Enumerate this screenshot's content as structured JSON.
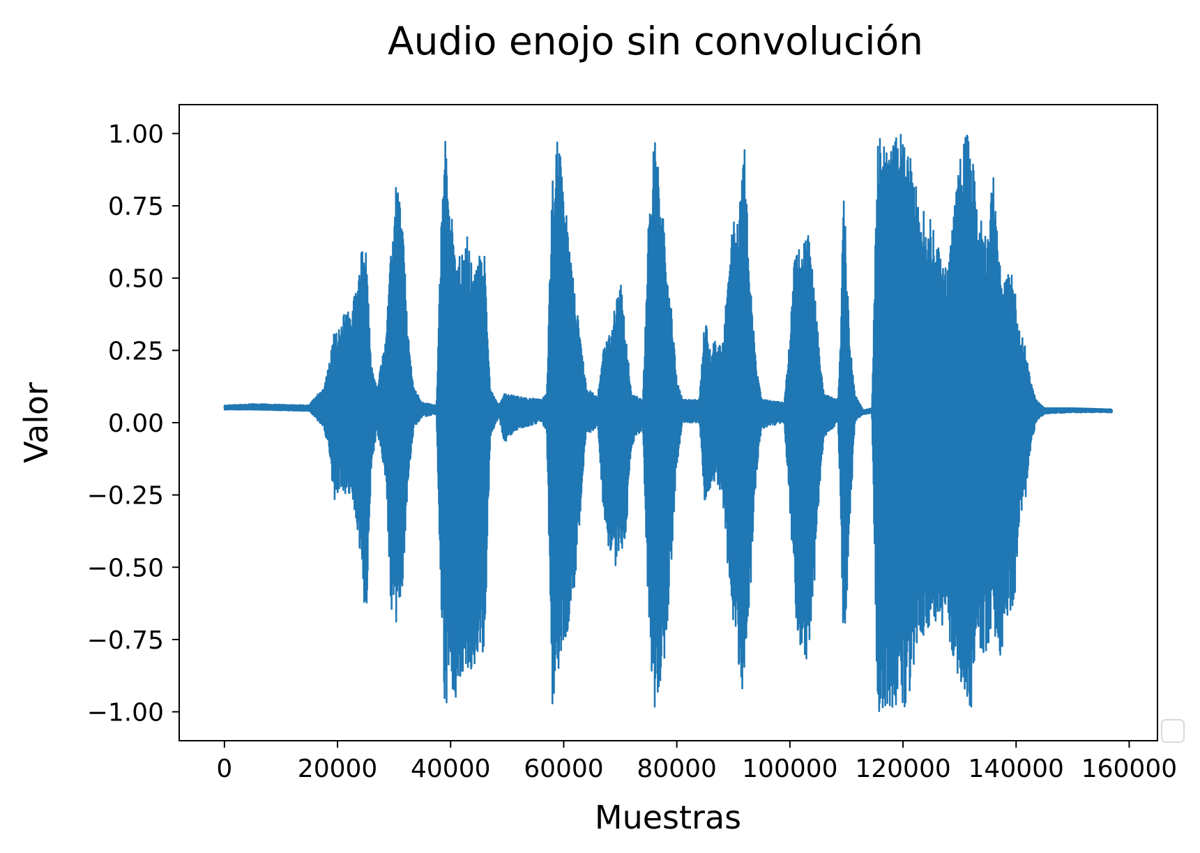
{
  "chart_data": {
    "type": "line",
    "title": "Audio enojo sin convolución",
    "xlabel": "Muestras",
    "ylabel": "Valor",
    "xlim": [
      -8000,
      165000
    ],
    "ylim": [
      -1.1,
      1.1
    ],
    "x_ticks": [
      0,
      20000,
      40000,
      60000,
      80000,
      100000,
      120000,
      140000,
      160000
    ],
    "x_tick_labels": [
      "0",
      "20000",
      "40000",
      "60000",
      "80000",
      "100000",
      "120000",
      "140000",
      "160000"
    ],
    "y_ticks": [
      1.0,
      0.75,
      0.5,
      0.25,
      0.0,
      -0.25,
      -0.5,
      -0.75,
      -1.0
    ],
    "y_tick_labels": [
      "1.00",
      "0.75",
      "0.50",
      "0.25",
      "0.00",
      "−0.25",
      "−0.50",
      "−0.75",
      "−1.00"
    ],
    "grid": false,
    "legend": "empty legend box, lower-right",
    "series": [
      {
        "color": "#1f77b4",
        "x_range": [
          0,
          157000
        ],
        "baseline": 0.05,
        "envelope": [
          {
            "x": 0,
            "max": 0.06,
            "min": 0.045
          },
          {
            "x": 5000,
            "max": 0.065,
            "min": 0.045
          },
          {
            "x": 15000,
            "max": 0.06,
            "min": 0.04
          },
          {
            "x": 16000,
            "max": 0.09,
            "min": 0.02
          },
          {
            "x": 17500,
            "max": 0.12,
            "min": -0.02
          },
          {
            "x": 18500,
            "max": 0.2,
            "min": -0.1
          },
          {
            "x": 19500,
            "max": 0.33,
            "min": -0.29
          },
          {
            "x": 20500,
            "max": 0.32,
            "min": -0.22
          },
          {
            "x": 21500,
            "max": 0.41,
            "min": -0.25
          },
          {
            "x": 22500,
            "max": 0.38,
            "min": -0.26
          },
          {
            "x": 23500,
            "max": 0.52,
            "min": -0.37
          },
          {
            "x": 24500,
            "max": 0.62,
            "min": -0.58
          },
          {
            "x": 25000,
            "max": 0.6,
            "min": -0.74
          },
          {
            "x": 26000,
            "max": 0.2,
            "min": -0.15
          },
          {
            "x": 27000,
            "max": 0.12,
            "min": -0.03
          },
          {
            "x": 28500,
            "max": 0.3,
            "min": -0.2
          },
          {
            "x": 29500,
            "max": 0.6,
            "min": -0.65
          },
          {
            "x": 30500,
            "max": 0.87,
            "min": -0.72
          },
          {
            "x": 31500,
            "max": 0.7,
            "min": -0.6
          },
          {
            "x": 32500,
            "max": 0.3,
            "min": -0.2
          },
          {
            "x": 33500,
            "max": 0.12,
            "min": -0.02
          },
          {
            "x": 35000,
            "max": 0.07,
            "min": 0.02
          },
          {
            "x": 37500,
            "max": 0.06,
            "min": 0.03
          },
          {
            "x": 38500,
            "max": 0.8,
            "min": -0.8
          },
          {
            "x": 39000,
            "max": 1.0,
            "min": -1.0
          },
          {
            "x": 40000,
            "max": 0.75,
            "min": -0.9
          },
          {
            "x": 41000,
            "max": 0.6,
            "min": -1.0
          },
          {
            "x": 42000,
            "max": 0.58,
            "min": -0.88
          },
          {
            "x": 43000,
            "max": 0.65,
            "min": -0.95
          },
          {
            "x": 44000,
            "max": 0.5,
            "min": -0.85
          },
          {
            "x": 45000,
            "max": 0.59,
            "min": -0.9
          },
          {
            "x": 46000,
            "max": 0.58,
            "min": -0.8
          },
          {
            "x": 47000,
            "max": 0.12,
            "min": -0.05
          },
          {
            "x": 48500,
            "max": 0.06,
            "min": 0.02
          },
          {
            "x": 49500,
            "max": 0.1,
            "min": -0.07
          },
          {
            "x": 52000,
            "max": 0.09,
            "min": -0.02
          },
          {
            "x": 56000,
            "max": 0.08,
            "min": 0.0
          },
          {
            "x": 57000,
            "max": 0.1,
            "min": -0.03
          },
          {
            "x": 58000,
            "max": 0.86,
            "min": -0.98
          },
          {
            "x": 59000,
            "max": 1.0,
            "min": -0.9
          },
          {
            "x": 60000,
            "max": 0.85,
            "min": -0.8
          },
          {
            "x": 61000,
            "max": 0.6,
            "min": -0.7
          },
          {
            "x": 62000,
            "max": 0.45,
            "min": -0.55
          },
          {
            "x": 63000,
            "max": 0.3,
            "min": -0.3
          },
          {
            "x": 64000,
            "max": 0.12,
            "min": -0.04
          },
          {
            "x": 66000,
            "max": 0.09,
            "min": -0.02
          },
          {
            "x": 67000,
            "max": 0.26,
            "min": -0.3
          },
          {
            "x": 68000,
            "max": 0.3,
            "min": -0.45
          },
          {
            "x": 69000,
            "max": 0.4,
            "min": -0.5
          },
          {
            "x": 70000,
            "max": 0.52,
            "min": -0.46
          },
          {
            "x": 71000,
            "max": 0.3,
            "min": -0.4
          },
          {
            "x": 72000,
            "max": 0.1,
            "min": -0.08
          },
          {
            "x": 74000,
            "max": 0.08,
            "min": -0.02
          },
          {
            "x": 75000,
            "max": 0.7,
            "min": -0.7
          },
          {
            "x": 76000,
            "max": 1.0,
            "min": -1.0
          },
          {
            "x": 77000,
            "max": 0.85,
            "min": -0.9
          },
          {
            "x": 78000,
            "max": 0.6,
            "min": -0.8
          },
          {
            "x": 79000,
            "max": 0.4,
            "min": -0.5
          },
          {
            "x": 80000,
            "max": 0.15,
            "min": -0.15
          },
          {
            "x": 81000,
            "max": 0.08,
            "min": 0.0
          },
          {
            "x": 84000,
            "max": 0.08,
            "min": 0.0
          },
          {
            "x": 85000,
            "max": 0.38,
            "min": -0.3
          },
          {
            "x": 86000,
            "max": 0.25,
            "min": -0.22
          },
          {
            "x": 87000,
            "max": 0.3,
            "min": -0.2
          },
          {
            "x": 88000,
            "max": 0.25,
            "min": -0.25
          },
          {
            "x": 89000,
            "max": 0.5,
            "min": -0.5
          },
          {
            "x": 90000,
            "max": 0.72,
            "min": -0.7
          },
          {
            "x": 91000,
            "max": 0.75,
            "min": -0.85
          },
          {
            "x": 92000,
            "max": 0.99,
            "min": -1.0
          },
          {
            "x": 93000,
            "max": 0.5,
            "min": -0.6
          },
          {
            "x": 94000,
            "max": 0.2,
            "min": -0.2
          },
          {
            "x": 95000,
            "max": 0.08,
            "min": -0.02
          },
          {
            "x": 99000,
            "max": 0.07,
            "min": 0.0
          },
          {
            "x": 100000,
            "max": 0.3,
            "min": -0.3
          },
          {
            "x": 101000,
            "max": 0.64,
            "min": -0.7
          },
          {
            "x": 102000,
            "max": 0.6,
            "min": -0.8
          },
          {
            "x": 103000,
            "max": 0.69,
            "min": -0.82
          },
          {
            "x": 104000,
            "max": 0.55,
            "min": -0.7
          },
          {
            "x": 105000,
            "max": 0.3,
            "min": -0.3
          },
          {
            "x": 106000,
            "max": 0.1,
            "min": -0.05
          },
          {
            "x": 108500,
            "max": 0.08,
            "min": 0.0
          },
          {
            "x": 109000,
            "max": 0.3,
            "min": -0.3
          },
          {
            "x": 109500,
            "max": 0.87,
            "min": -0.86
          },
          {
            "x": 110500,
            "max": 0.3,
            "min": -0.4
          },
          {
            "x": 111500,
            "max": 0.1,
            "min": 0.0
          },
          {
            "x": 113000,
            "max": 0.04,
            "min": 0.03
          },
          {
            "x": 114500,
            "max": 0.05,
            "min": 0.03
          },
          {
            "x": 115500,
            "max": 1.0,
            "min": -1.0
          },
          {
            "x": 120000,
            "max": 1.0,
            "min": -1.0
          },
          {
            "x": 121000,
            "max": 0.95,
            "min": -0.95
          },
          {
            "x": 123000,
            "max": 0.75,
            "min": -0.75
          },
          {
            "x": 125000,
            "max": 0.7,
            "min": -0.7
          },
          {
            "x": 127000,
            "max": 0.55,
            "min": -0.7
          },
          {
            "x": 128000,
            "max": 0.55,
            "min": -0.75
          },
          {
            "x": 130000,
            "max": 0.92,
            "min": -0.9
          },
          {
            "x": 131000,
            "max": 1.0,
            "min": -1.0
          },
          {
            "x": 132000,
            "max": 1.0,
            "min": -1.0
          },
          {
            "x": 133000,
            "max": 0.75,
            "min": -0.8
          },
          {
            "x": 135000,
            "max": 0.65,
            "min": -0.8
          },
          {
            "x": 136000,
            "max": 0.88,
            "min": -0.72
          },
          {
            "x": 137000,
            "max": 0.6,
            "min": -0.95
          },
          {
            "x": 138000,
            "max": 0.5,
            "min": -0.65
          },
          {
            "x": 139500,
            "max": 0.55,
            "min": -0.7
          },
          {
            "x": 140500,
            "max": 0.32,
            "min": -0.35
          },
          {
            "x": 141500,
            "max": 0.28,
            "min": -0.3
          },
          {
            "x": 142500,
            "max": 0.15,
            "min": -0.1
          },
          {
            "x": 143500,
            "max": 0.08,
            "min": 0.0
          },
          {
            "x": 145000,
            "max": 0.05,
            "min": 0.03
          },
          {
            "x": 150000,
            "max": 0.05,
            "min": 0.035
          },
          {
            "x": 157000,
            "max": 0.045,
            "min": 0.035
          }
        ]
      }
    ]
  }
}
